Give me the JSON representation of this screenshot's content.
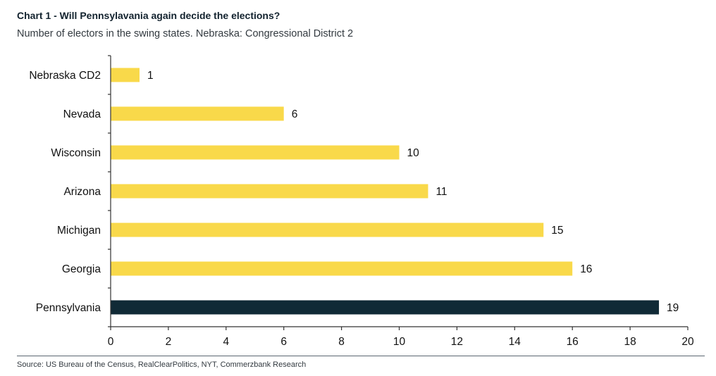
{
  "header": {
    "title": "Chart 1 - Will Pennsylavania again decide the elections?",
    "subtitle": "Number of electors in the swing states. Nebraska: Congressional District 2"
  },
  "footer": {
    "source": "Source: US Bureau of the Census, RealClearPolitics, NYT, Commerzbank Research"
  },
  "colors": {
    "default_bar": "#f9d94a",
    "highlight_bar": "#102a36",
    "axis": "#333333"
  },
  "chart_data": {
    "type": "bar",
    "orientation": "horizontal",
    "categories": [
      "Nebraska CD2",
      "Nevada",
      "Wisconsin",
      "Arizona",
      "Michigan",
      "Georgia",
      "Pennsylvania"
    ],
    "values": [
      1,
      6,
      10,
      11,
      15,
      16,
      19
    ],
    "highlight": "Pennsylvania",
    "xlim": [
      0,
      20
    ],
    "xticks": [
      0,
      2,
      4,
      6,
      8,
      10,
      12,
      14,
      16,
      18,
      20
    ],
    "data_labels": true,
    "grid": false,
    "legend": false
  }
}
